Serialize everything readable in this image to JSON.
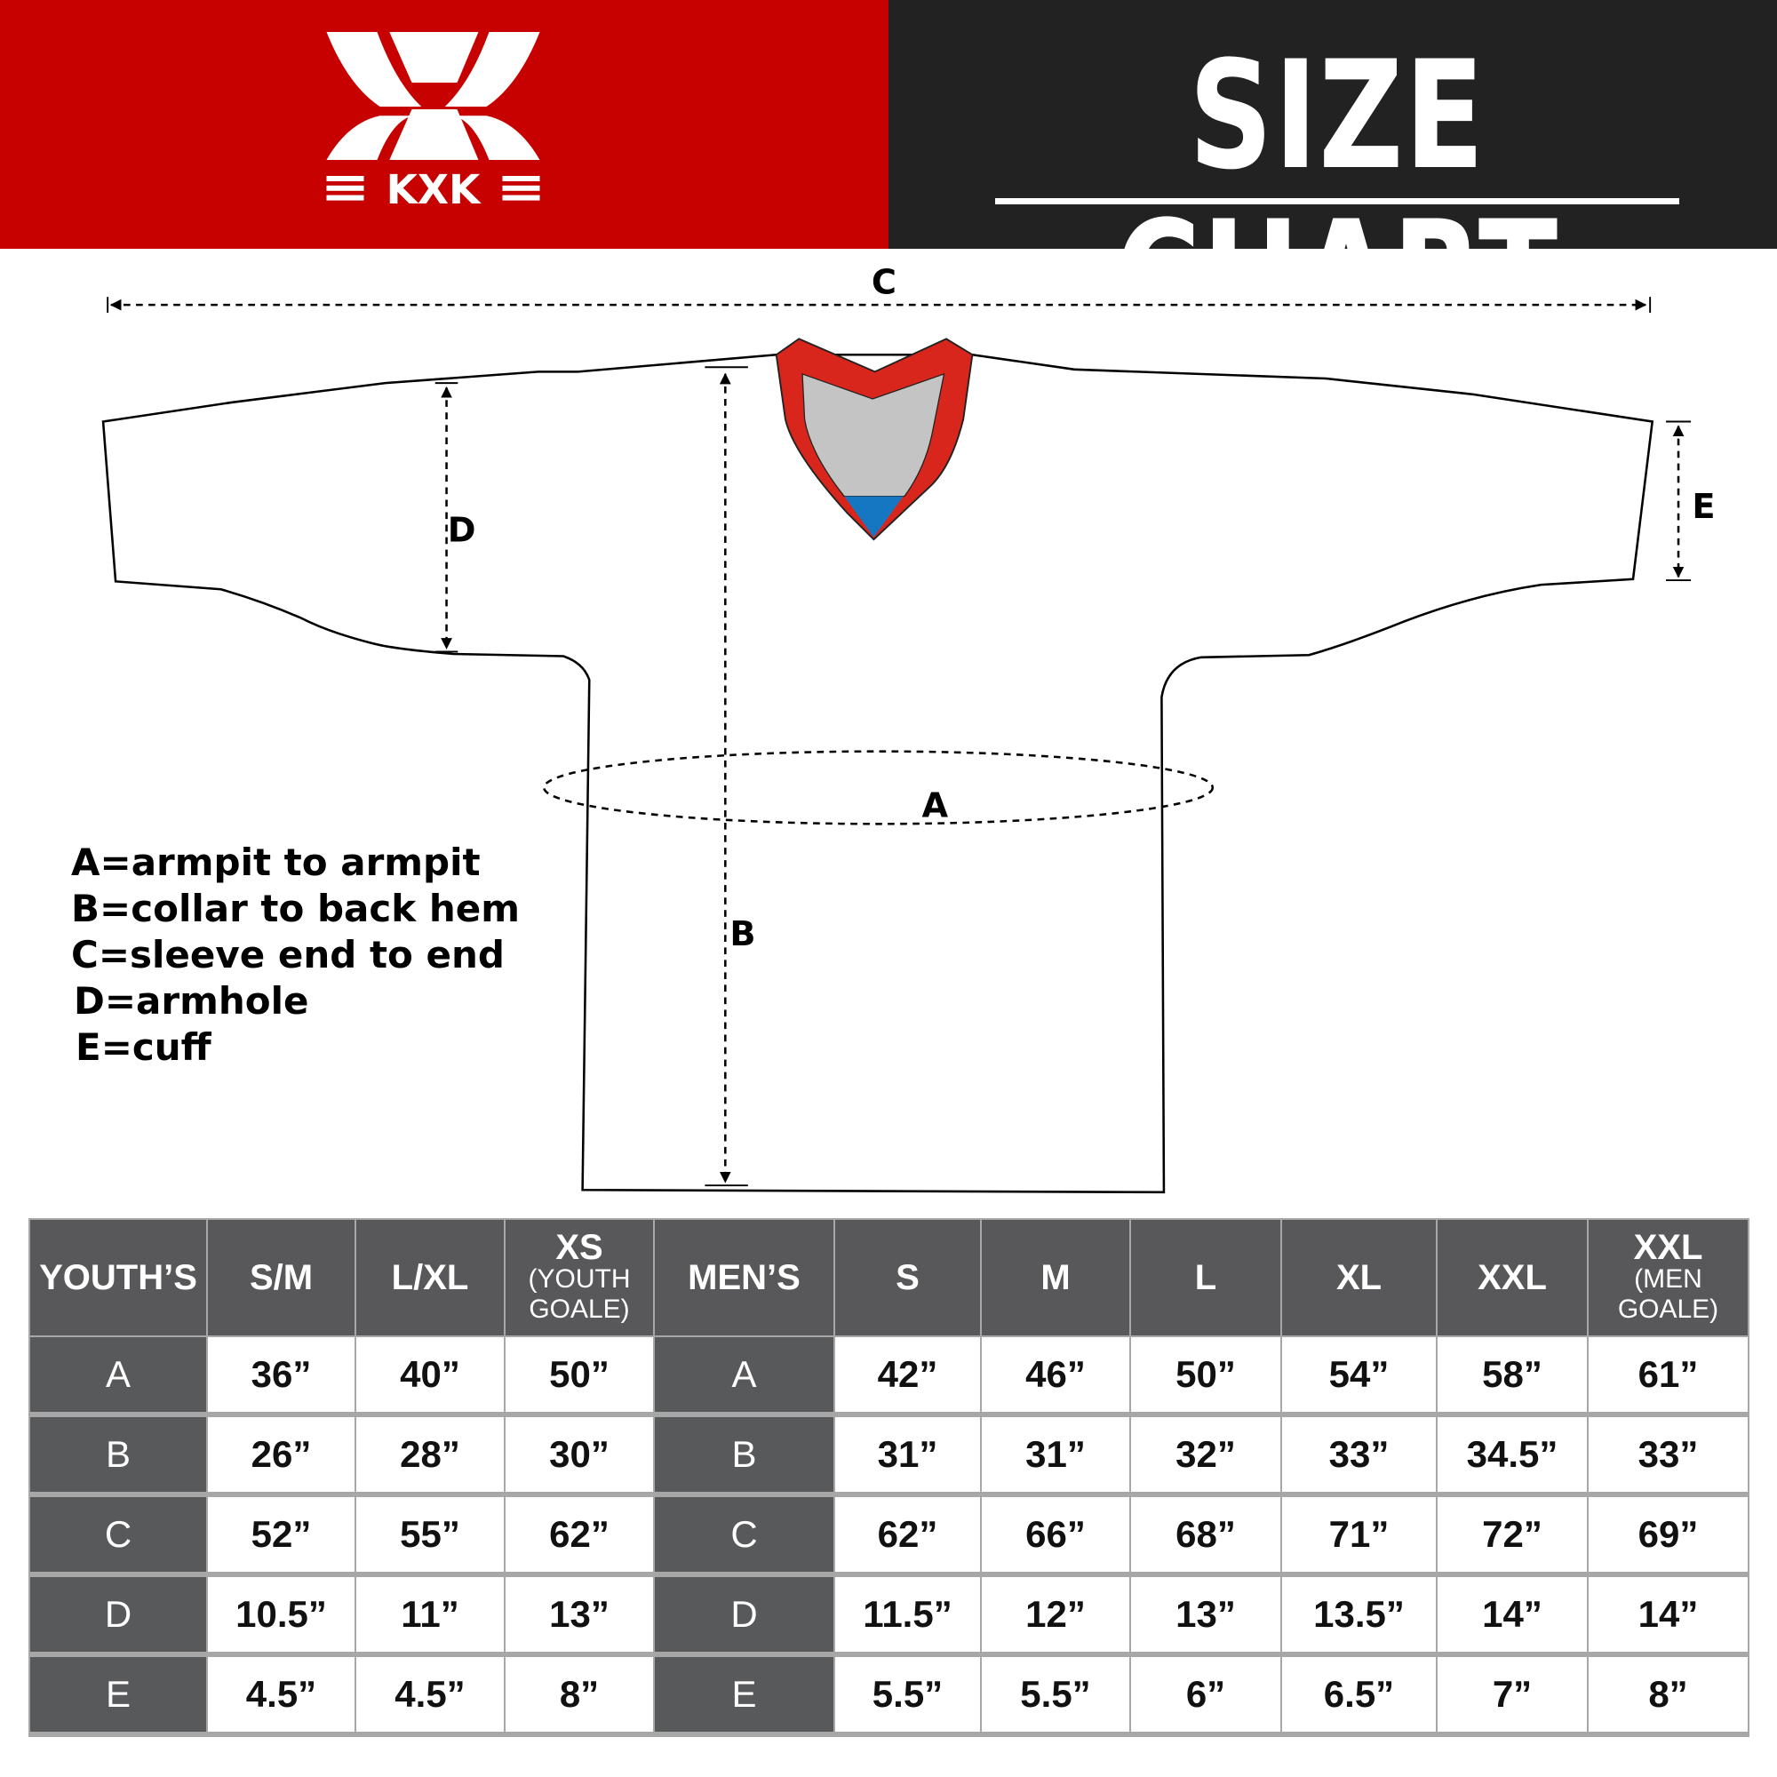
{
  "header": {
    "brand": "KXK",
    "title": "SIZE CHART",
    "brand_color": "#c70000",
    "dark_color": "#222222"
  },
  "diagram": {
    "labels": {
      "A": "A",
      "B": "B",
      "C": "C",
      "D": "D",
      "E": "E"
    },
    "collar_colors": {
      "trim": "#d9261c",
      "inner": "#c4c4c4",
      "tip": "#1577c2"
    }
  },
  "legend": [
    "A=armpit to armpit",
    "B=collar to back hem",
    "C=sleeve end to end",
    "D=armhole",
    "E=cuff"
  ],
  "table": {
    "headers": [
      {
        "main": "YOUTH’S",
        "sub": ""
      },
      {
        "main": "S/M",
        "sub": ""
      },
      {
        "main": "L/XL",
        "sub": ""
      },
      {
        "main": "XS",
        "sub": "(YOUTH GOALE)"
      },
      {
        "main": "MEN’S",
        "sub": ""
      },
      {
        "main": "S",
        "sub": ""
      },
      {
        "main": "M",
        "sub": ""
      },
      {
        "main": "L",
        "sub": ""
      },
      {
        "main": "XL",
        "sub": ""
      },
      {
        "main": "XXL",
        "sub": ""
      },
      {
        "main": "XXL",
        "sub": "(MEN GOALE)"
      }
    ],
    "rows": [
      [
        "A",
        "36”",
        "40”",
        "50”",
        "A",
        "42”",
        "46”",
        "50”",
        "54”",
        "58”",
        "61”"
      ],
      [
        "B",
        "26”",
        "28”",
        "30”",
        "B",
        "31”",
        "31”",
        "32”",
        "33”",
        "34.5”",
        "33”"
      ],
      [
        "C",
        "52”",
        "55”",
        "62”",
        "C",
        "62”",
        "66”",
        "68”",
        "71”",
        "72”",
        "69”"
      ],
      [
        "D",
        "10.5”",
        "11”",
        "13”",
        "D",
        "11.5”",
        "12”",
        "13”",
        "13.5”",
        "14”",
        "14”"
      ],
      [
        "E",
        "4.5”",
        "4.5”",
        "8”",
        "E",
        "5.5”",
        "5.5”",
        "6”",
        "6.5”",
        "7”",
        "8”"
      ]
    ]
  }
}
